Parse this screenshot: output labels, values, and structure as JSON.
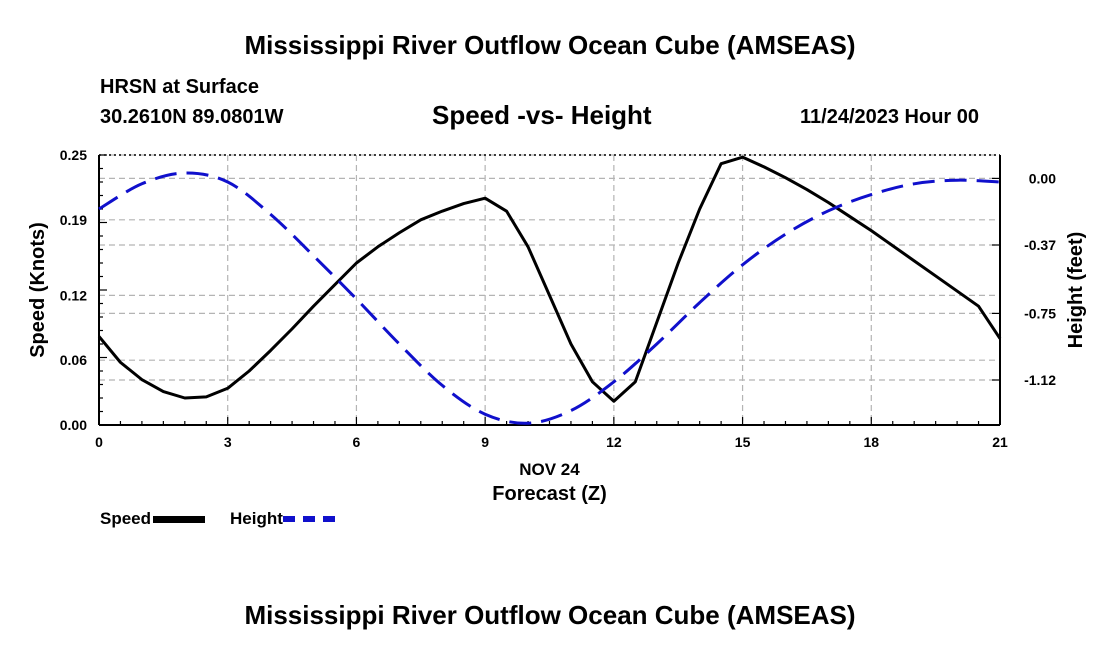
{
  "header": {
    "title": "Mississippi River Outflow Ocean Cube (AMSEAS)",
    "location": "HRSN at Surface",
    "coords": "30.2610N  89.0801W",
    "subtitle": "Speed -vs- Height",
    "datetime": "11/24/2023 Hour 00"
  },
  "footer": {
    "title": "Mississippi River Outflow Ocean Cube (AMSEAS)"
  },
  "legend": {
    "speed_label": "Speed",
    "height_label": "Height"
  },
  "colors": {
    "speed": "#000000",
    "height": "#1010cc",
    "grid": "#b4b4b4"
  },
  "chart_data": {
    "type": "line",
    "title": "Speed -vs- Height",
    "xlabel": "Forecast (Z)",
    "x_date_label": "NOV 24",
    "ylabel": "Speed (Knots)",
    "y2label": "Height (feet)",
    "xlim": [
      0,
      21
    ],
    "ylim": [
      0,
      0.25
    ],
    "y2lim": [
      -1.37,
      0.13
    ],
    "x_ticks": [
      0,
      3,
      6,
      9,
      12,
      15,
      18,
      21
    ],
    "y_ticks": [
      0.0,
      0.06,
      0.12,
      0.19,
      0.25
    ],
    "y_tick_labels": [
      "0.00",
      "0.06",
      "0.12",
      "0.19",
      "0.25"
    ],
    "y2_ticks": [
      0.0,
      -0.37,
      -0.75,
      -1.12
    ],
    "y2_tick_labels": [
      "0.00",
      "-0.37",
      "-0.75",
      "-1.12"
    ],
    "grid": true,
    "legend_position": "bottom-left",
    "series": [
      {
        "name": "Speed",
        "axis": "left",
        "style": "solid",
        "x": [
          0,
          0.5,
          1,
          1.5,
          2,
          2.5,
          3,
          3.5,
          4,
          4.5,
          5,
          5.5,
          6,
          6.5,
          7,
          7.5,
          8,
          8.5,
          9,
          9.5,
          10,
          10.5,
          11,
          11.5,
          12,
          12.5,
          13,
          13.5,
          14,
          14.5,
          15,
          15.5,
          16,
          16.5,
          17,
          17.5,
          18,
          18.5,
          19,
          19.5,
          20,
          20.5,
          21
        ],
        "values": [
          0.082,
          0.058,
          0.042,
          0.031,
          0.025,
          0.026,
          0.034,
          0.05,
          0.069,
          0.089,
          0.11,
          0.13,
          0.15,
          0.165,
          0.178,
          0.19,
          0.198,
          0.205,
          0.21,
          0.198,
          0.165,
          0.12,
          0.075,
          0.04,
          0.022,
          0.04,
          0.095,
          0.15,
          0.2,
          0.242,
          0.248,
          0.239,
          0.229,
          0.218,
          0.206,
          0.193,
          0.18,
          0.166,
          0.152,
          0.138,
          0.124,
          0.11,
          0.08
        ]
      },
      {
        "name": "Height",
        "axis": "right",
        "style": "dashed",
        "x": [
          0,
          1,
          2,
          3,
          4,
          5,
          6,
          7,
          8,
          9,
          10,
          11,
          12,
          13,
          14,
          15,
          16,
          17,
          18,
          19,
          20,
          21
        ],
        "values": [
          -0.17,
          -0.03,
          0.03,
          -0.02,
          -0.2,
          -0.43,
          -0.67,
          -0.92,
          -1.15,
          -1.31,
          -1.36,
          -1.29,
          -1.13,
          -0.92,
          -0.69,
          -0.48,
          -0.31,
          -0.18,
          -0.09,
          -0.03,
          -0.01,
          -0.02
        ]
      }
    ]
  }
}
